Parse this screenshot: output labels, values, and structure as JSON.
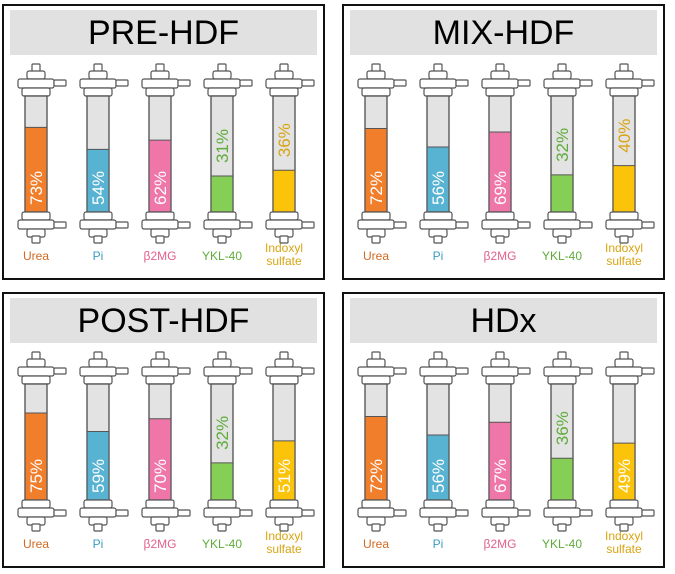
{
  "chart_data": [
    {
      "type": "bar",
      "title": "PRE-HDF",
      "categories": [
        "Urea",
        "Pi",
        "β2MG",
        "YKL-40",
        "Indoxyl sulfate"
      ],
      "values": [
        73,
        54,
        62,
        31,
        36
      ],
      "value_labels": [
        "73%",
        "54%",
        "62%",
        "31%",
        "36%"
      ],
      "ylim": [
        0,
        100
      ]
    },
    {
      "type": "bar",
      "title": "MIX-HDF",
      "categories": [
        "Urea",
        "Pi",
        "β2MG",
        "YKL-40",
        "Indoxyl sulfate"
      ],
      "values": [
        72,
        56,
        69,
        32,
        40
      ],
      "value_labels": [
        "72%",
        "56%",
        "69%",
        "32%",
        "40%"
      ],
      "ylim": [
        0,
        100
      ]
    },
    {
      "type": "bar",
      "title": "POST-HDF",
      "categories": [
        "Urea",
        "Pi",
        "β2MG",
        "YKL-40",
        "Indoxyl sulfate"
      ],
      "values": [
        75,
        59,
        70,
        32,
        51
      ],
      "value_labels": [
        "75%",
        "59%",
        "70%",
        "32%",
        "51%"
      ],
      "ylim": [
        0,
        100
      ]
    },
    {
      "type": "bar",
      "title": "HDx",
      "categories": [
        "Urea",
        "Pi",
        "β2MG",
        "YKL-40",
        "Indoxyl sulfate"
      ],
      "values": [
        72,
        56,
        67,
        36,
        49
      ],
      "value_labels": [
        "72%",
        "56%",
        "67%",
        "36%",
        "49%"
      ],
      "ylim": [
        0,
        100
      ]
    }
  ],
  "colors": {
    "fill": [
      "#f07e2b",
      "#58b3d3",
      "#ee76a8",
      "#86cf56",
      "#fcc30b"
    ],
    "label": [
      "#d2691e",
      "#3b9cc4",
      "#e2608f",
      "#5eac3a",
      "#d8a412"
    ],
    "tube_empty": "#e3e3e3",
    "outline": "#555555"
  }
}
